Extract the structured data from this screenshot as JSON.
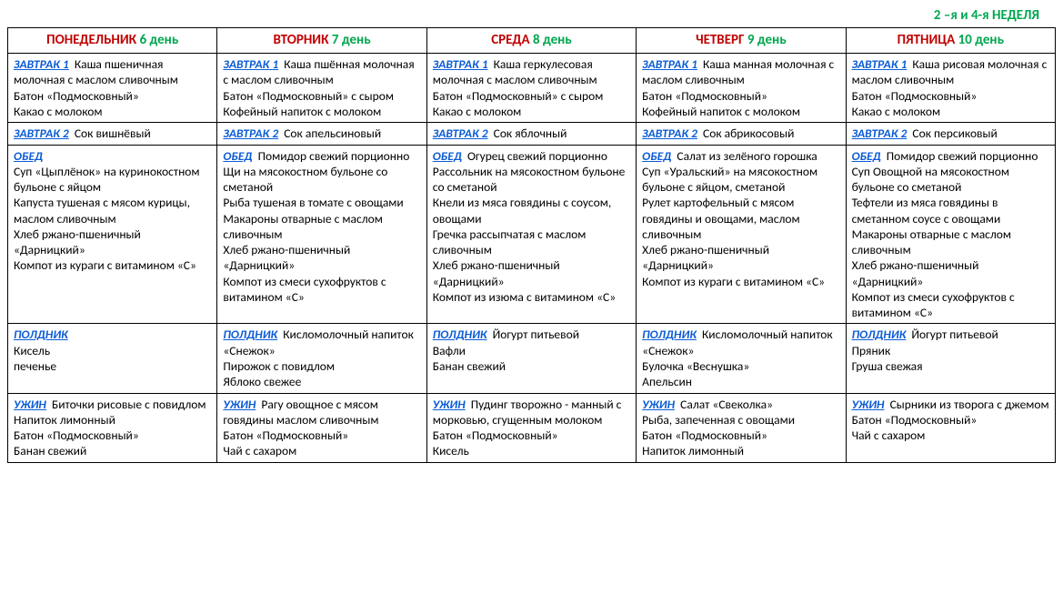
{
  "topline": "2 –я и 4-я  НЕДЕЛЯ",
  "columns": [
    {
      "day": "ПОНЕДЕЛЬНИК",
      "sub": "6 день"
    },
    {
      "day": "ВТОРНИК",
      "sub": "7 день"
    },
    {
      "day": "СРЕДА",
      "sub": "8 день"
    },
    {
      "day": "ЧЕТВЕРГ",
      "sub": "9 день"
    },
    {
      "day": "ПЯТНИЦА",
      "sub": "10 день"
    }
  ],
  "rows": [
    {
      "meal": "ЗАВТРАК 1",
      "cells": [
        [
          "Каша пшеничная молочная с маслом сливочным",
          "Батон «Подмосковный»",
          "Какао  с молоком"
        ],
        [
          "Каша пшённая молочная с маслом сливочным",
          "Батон «Подмосковный» с сыром",
          "Кофейный напиток с молоком"
        ],
        [
          "Каша геркулесовая молочная с маслом сливочным",
          "Батон «Подмосковный» с сыром",
          "Какао с молоком"
        ],
        [
          "Каша манная молочная с маслом сливочным",
          "Батон «Подмосковный»",
          "Кофейный напиток с молоком"
        ],
        [
          "Каша рисовая молочная с маслом сливочным",
          "Батон «Подмосковный»",
          "Какао с молоком"
        ]
      ]
    },
    {
      "meal": "ЗАВТРАК 2",
      "cells": [
        [
          "Сок вишнёвый"
        ],
        [
          "Сок апельсиновый"
        ],
        [
          "Сок яблочный"
        ],
        [
          "Сок абрикосовый"
        ],
        [
          "Сок персиковый"
        ]
      ]
    },
    {
      "meal": "ОБЕД",
      "cells": [
        [
          "",
          "Суп «Цыплёнок»  на куринокостном  бульоне с яйцом",
          "Капуста тушеная с мясом курицы, маслом сливочным",
          "Хлеб ржано-пшеничный «Дарницкий»",
          "Компот из кураги с витамином «С»"
        ],
        [
          "Помидор свежий порционно",
          "Щи на мясокостном бульоне со сметаной",
          "Рыба тушеная в томате с овощами",
          "Макароны отварные с маслом сливочным",
          "Хлеб ржано-пшеничный «Дарницкий»",
          "Компот из  смеси сухофруктов с витамином «С»"
        ],
        [
          "Огурец свежий порционно",
          "Рассольник  на мясокостном бульоне со сметаной",
          "Кнели из мяса говядины с соусом, овощами",
          "Гречка рассыпчатая с маслом сливочным",
          "Хлеб ржано-пшеничный «Дарницкий»",
          "Компот из  изюма с витамином «С»"
        ],
        [
          "Салат из зелёного горошка",
          "Суп «Уральский» на мясокостном бульоне с яйцом, сметаной",
          "Рулет картофельный с мясом говядины и овощами, маслом сливочным",
          "Хлеб ржано-пшеничный «Дарницкий»",
          "Компот из кураги с витамином «С»"
        ],
        [
          "Помидор свежий порционно",
          "Суп Овощной на мясокостном бульоне со сметаной",
          "Тефтели из мяса говядины в сметанном соусе с  овощами",
          "Макароны отварные с маслом сливочным",
          "Хлеб ржано-пшеничный «Дарницкий»",
          "Компот из смеси сухофруктов с витамином «С»"
        ]
      ]
    },
    {
      "meal": "ПОЛДНИК",
      "cells": [
        [
          "",
          "Кисель",
          "печенье"
        ],
        [
          "Кисломолочный напиток «Снежок»",
          "Пирожок  с повидлом",
          "Яблоко свежее"
        ],
        [
          "Йогурт питьевой",
          "Вафли",
          "Банан свежий"
        ],
        [
          "Кисломолочный напиток «Снежок»",
          "Булочка «Веснушка»",
          "Апельсин"
        ],
        [
          "Йогурт питьевой",
          "Пряник",
          "Груша свежая"
        ]
      ]
    },
    {
      "meal": "УЖИН",
      "cells": [
        [
          "Биточки рисовые с повидлом",
          "Напиток  лимонный",
          "Батон  «Подмосковный»",
          "Банан свежий"
        ],
        [
          "Рагу овощное с мясом говядины маслом сливочным",
          "Батон «Подмосковный»",
          "Чай с сахаром"
        ],
        [
          "Пудинг творожно - манный с морковью, сгущенным молоком",
          "Батон  «Подмосковный»",
          "Кисель"
        ],
        [
          "Салат «Свеколка»",
          "Рыба, запеченная с овощами",
          "Батон «Подмосковный»",
          "Напиток  лимонный"
        ],
        [
          "Сырники из творога  с джемом",
          "Батон «Подмосковный»",
          "Чай с сахаром"
        ]
      ]
    }
  ]
}
